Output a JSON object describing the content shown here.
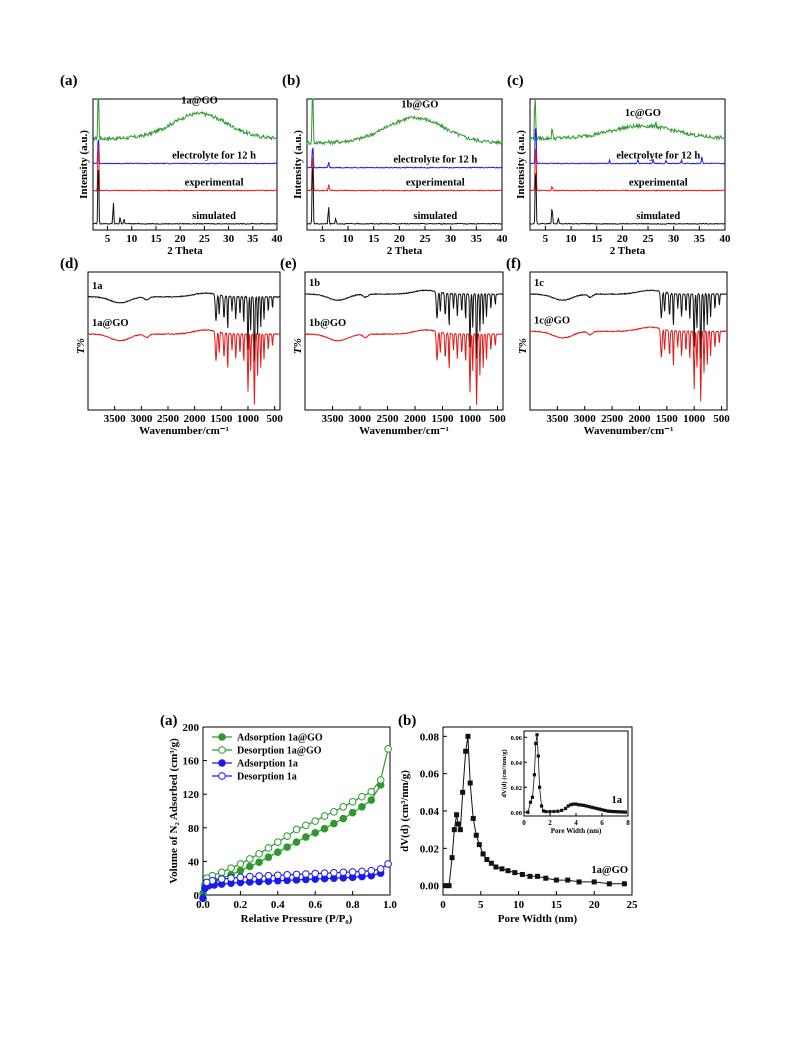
{
  "chart_data": [
    {
      "panel": "(a)",
      "type": "line",
      "xlabel": "2 Theta",
      "ylabel": "Intensity (a.u.)",
      "xlim": [
        2,
        40
      ],
      "xticks": [
        5,
        10,
        15,
        20,
        25,
        30,
        35,
        40
      ],
      "series": [
        {
          "name": "1a@GO",
          "color": "#2e9a2e",
          "offset": 4.4,
          "shape": "hump",
          "hump_center": 24,
          "hump_width": 8,
          "hump_height": 1.2,
          "sharp_peaks": [
            [
              3.1,
              5.0
            ]
          ]
        },
        {
          "name": "electrolyte for 12 h",
          "color": "#1a1aee",
          "offset": 3.2,
          "shape": "flat",
          "sharp_peaks": [
            [
              3.1,
              1.6
            ]
          ]
        },
        {
          "name": "experimental",
          "color": "#e31a1a",
          "offset": 1.9,
          "shape": "flat",
          "sharp_peaks": [
            [
              3.1,
              3.0
            ]
          ]
        },
        {
          "name": "simulated",
          "color": "#111111",
          "offset": 0.3,
          "shape": "flat",
          "sharp_peaks": [
            [
              3.1,
              3.6
            ],
            [
              6.2,
              1.1
            ],
            [
              7.6,
              0.35
            ],
            [
              8.4,
              0.25
            ]
          ]
        }
      ]
    },
    {
      "panel": "(b)",
      "type": "line",
      "xlabel": "2 Theta",
      "ylabel": "Intensity (a.u.)",
      "xlim": [
        2,
        40
      ],
      "xticks": [
        5,
        10,
        15,
        20,
        25,
        30,
        35,
        40
      ],
      "series": [
        {
          "name": "1b@GO",
          "color": "#2e9a2e",
          "offset": 4.2,
          "shape": "hump",
          "hump_center": 23,
          "hump_width": 8,
          "hump_height": 1.2,
          "sharp_peaks": [
            [
              3.1,
              4.6
            ]
          ]
        },
        {
          "name": "electrolyte for 12 h",
          "color": "#1a1aee",
          "offset": 3.0,
          "shape": "flat",
          "sharp_peaks": [
            [
              3.1,
              1.3
            ],
            [
              6.2,
              0.3
            ]
          ]
        },
        {
          "name": "experimental",
          "color": "#e31a1a",
          "offset": 1.9,
          "shape": "flat",
          "sharp_peaks": [
            [
              3.1,
              2.2
            ],
            [
              6.2,
              0.3
            ]
          ]
        },
        {
          "name": "simulated",
          "color": "#111111",
          "offset": 0.3,
          "shape": "flat",
          "sharp_peaks": [
            [
              3.1,
              3.8
            ],
            [
              6.2,
              0.9
            ],
            [
              7.6,
              0.3
            ]
          ]
        }
      ]
    },
    {
      "panel": "(c)",
      "type": "line",
      "xlabel": "2 Theta",
      "ylabel": "Intensity (a.u.)",
      "xlim": [
        2,
        40
      ],
      "xticks": [
        5,
        10,
        15,
        20,
        25,
        30,
        35,
        40
      ],
      "series": [
        {
          "name": "1c@GO",
          "color": "#2e9a2e",
          "offset": 4.4,
          "shape": "hump",
          "hump_center": 24,
          "hump_width": 9,
          "hump_height": 0.6,
          "sharp_peaks": [
            [
              3.0,
              4.2
            ],
            [
              6.3,
              0.6
            ],
            [
              26.5,
              0.3
            ]
          ]
        },
        {
          "name": "electrolyte for 12 h",
          "color": "#1a1aee",
          "offset": 3.2,
          "shape": "flat",
          "sharp_peaks": [
            [
              3.1,
              2.4
            ],
            [
              17.5,
              0.15
            ],
            [
              23,
              0.2
            ],
            [
              26,
              0.2
            ],
            [
              28.5,
              0.15
            ],
            [
              31.5,
              0.15
            ],
            [
              35.5,
              0.35
            ]
          ]
        },
        {
          "name": "experimental",
          "color": "#e31a1a",
          "offset": 1.9,
          "shape": "flat",
          "sharp_peaks": [
            [
              3.1,
              2.8
            ],
            [
              6.3,
              0.25
            ]
          ]
        },
        {
          "name": "simulated",
          "color": "#111111",
          "offset": 0.3,
          "shape": "flat",
          "sharp_peaks": [
            [
              3.1,
              3.4
            ],
            [
              6.3,
              0.9
            ],
            [
              7.5,
              0.3
            ]
          ]
        }
      ]
    },
    {
      "panel": "(d)",
      "type": "line",
      "xlabel": "Wavenumber/cm⁻¹",
      "ylabel": "T%",
      "xlim": [
        4000,
        400
      ],
      "xticks": [
        3500,
        3000,
        2500,
        2000,
        1500,
        1000,
        500
      ],
      "series": [
        {
          "name": "1a",
          "color": "#111111",
          "level": 0.82
        },
        {
          "name": "1a@GO",
          "color": "#e31a1a",
          "level": 0.55
        }
      ]
    },
    {
      "panel": "(e)",
      "type": "line",
      "xlabel": "Wavenumber/cm⁻¹",
      "ylabel": "T%",
      "xlim": [
        4000,
        400
      ],
      "xticks": [
        3500,
        3000,
        2500,
        2000,
        1500,
        1000,
        500
      ],
      "series": [
        {
          "name": "1b",
          "color": "#111111",
          "level": 0.84
        },
        {
          "name": "1b@GO",
          "color": "#e31a1a",
          "level": 0.55
        }
      ]
    },
    {
      "panel": "(f)",
      "type": "line",
      "xlabel": "Wavenumber/cm⁻¹",
      "ylabel": "T%",
      "xlim": [
        4000,
        400
      ],
      "xticks": [
        3500,
        3000,
        2500,
        2000,
        1500,
        1000,
        500
      ],
      "series": [
        {
          "name": "1c",
          "color": "#111111",
          "level": 0.84
        },
        {
          "name": "1c@GO",
          "color": "#e31a1a",
          "level": 0.57
        }
      ]
    },
    {
      "panel": "(a)",
      "type": "line",
      "xlabel": "Relative Pressure (P/P₀)",
      "ylabel": "Volume of N₂ Adsorbed (cm³/g)",
      "xlim": [
        0,
        1.0
      ],
      "ylim": [
        0,
        200
      ],
      "xticks": [
        0.0,
        0.2,
        0.4,
        0.6,
        0.8,
        1.0
      ],
      "yticks": [
        0,
        40,
        80,
        120,
        160,
        200
      ],
      "legend_position": "top-left",
      "series": [
        {
          "name": "Adsorption 1a@GO",
          "color": "#2e9a2e",
          "marker": "filled-circle",
          "x": [
            0.0,
            0.01,
            0.03,
            0.06,
            0.1,
            0.15,
            0.2,
            0.25,
            0.3,
            0.35,
            0.4,
            0.45,
            0.5,
            0.55,
            0.6,
            0.65,
            0.7,
            0.75,
            0.8,
            0.85,
            0.9,
            0.95
          ],
          "y": [
            2,
            12,
            15,
            17,
            20,
            24,
            29,
            34,
            39,
            45,
            51,
            57,
            63,
            69,
            74,
            79,
            85,
            91,
            98,
            105,
            113,
            131
          ]
        },
        {
          "name": "Desorption 1a@GO",
          "color": "#2e9a2e",
          "marker": "open-circle",
          "x": [
            0.99,
            0.95,
            0.9,
            0.85,
            0.8,
            0.75,
            0.7,
            0.65,
            0.6,
            0.55,
            0.5,
            0.45,
            0.4,
            0.35,
            0.3,
            0.25,
            0.2,
            0.15,
            0.1,
            0.05,
            0.02
          ],
          "y": [
            174,
            137,
            123,
            117,
            111,
            105,
            99,
            94,
            88,
            83,
            78,
            70,
            63,
            56,
            49,
            43,
            37,
            32,
            27,
            23,
            20
          ]
        },
        {
          "name": "Adsorption 1a",
          "color": "#1a1aee",
          "marker": "filled-circle",
          "x": [
            0.0,
            0.01,
            0.03,
            0.06,
            0.1,
            0.15,
            0.2,
            0.25,
            0.3,
            0.35,
            0.4,
            0.45,
            0.5,
            0.55,
            0.6,
            0.65,
            0.7,
            0.75,
            0.8,
            0.85,
            0.9,
            0.95
          ],
          "y": [
            -4,
            8,
            11,
            12,
            13,
            14,
            15,
            15.5,
            16,
            16.5,
            17,
            17.5,
            18,
            18.5,
            19,
            19.5,
            20,
            20.5,
            21,
            22,
            23,
            26
          ]
        },
        {
          "name": "Desorption 1a",
          "color": "#1a1aee",
          "marker": "open-circle",
          "x": [
            0.99,
            0.95,
            0.9,
            0.85,
            0.8,
            0.75,
            0.7,
            0.65,
            0.6,
            0.55,
            0.5,
            0.45,
            0.4,
            0.35,
            0.3,
            0.25,
            0.2,
            0.15,
            0.1,
            0.05,
            0.02
          ],
          "y": [
            37,
            31,
            29,
            28,
            27.5,
            27,
            26.5,
            26,
            25.5,
            25,
            24.5,
            24,
            23.5,
            23,
            22.5,
            22,
            21,
            20,
            19,
            17,
            15
          ]
        }
      ]
    },
    {
      "panel": "(b)",
      "type": "line",
      "xlabel": "Pore Width (nm)",
      "ylabel": "dV(d) (cm³/nm/g)",
      "xlim": [
        0,
        25
      ],
      "ylim": [
        -0.005,
        0.085
      ],
      "xticks": [
        0,
        5,
        10,
        15,
        20,
        25
      ],
      "yticks": [
        0.0,
        0.02,
        0.04,
        0.06,
        0.08
      ],
      "series": [
        {
          "name": "1a@GO",
          "color": "#111111",
          "marker": "filled-square",
          "x": [
            0.4,
            0.8,
            1.2,
            1.5,
            1.8,
            2.0,
            2.3,
            2.6,
            3.0,
            3.3,
            3.6,
            4.0,
            4.4,
            4.8,
            5.3,
            5.8,
            6.4,
            7.0,
            7.8,
            8.6,
            9.5,
            10.5,
            11.5,
            12.5,
            13.6,
            15.0,
            16.5,
            18.0,
            20.0,
            22.0,
            24.0
          ],
          "y": [
            0.0,
            0.0,
            0.015,
            0.03,
            0.038,
            0.033,
            0.03,
            0.05,
            0.072,
            0.08,
            0.055,
            0.036,
            0.027,
            0.022,
            0.017,
            0.014,
            0.012,
            0.01,
            0.009,
            0.008,
            0.007,
            0.006,
            0.005,
            0.005,
            0.004,
            0.003,
            0.003,
            0.002,
            0.002,
            0.001,
            0.001
          ]
        }
      ],
      "inset": {
        "type": "line",
        "xlabel": "Pore Width (nm)",
        "ylabel": "dV(d) (cm³/nm/g)",
        "xlim": [
          0,
          8
        ],
        "ylim": [
          -0.003,
          0.065
        ],
        "xticks": [
          0,
          2,
          4,
          6,
          8
        ],
        "yticks": [
          0.0,
          0.02,
          0.04,
          0.06
        ],
        "series": [
          {
            "name": "1a",
            "color": "#111111",
            "marker": "filled-square",
            "x": [
              0.3,
              0.5,
              0.65,
              0.8,
              0.9,
              1.0,
              1.1,
              1.2,
              1.35,
              1.5,
              1.7,
              2.0,
              2.3,
              2.6,
              2.9,
              3.2,
              3.4,
              3.6,
              3.8,
              4.0,
              4.2,
              4.4,
              4.6,
              4.8,
              5.0,
              5.2,
              5.4,
              5.6,
              5.8,
              6.0,
              6.2,
              6.4,
              6.6,
              6.8,
              7.0,
              7.2,
              7.4,
              7.6,
              7.8
            ],
            "y": [
              0.0,
              0.008,
              0.012,
              0.03,
              0.055,
              0.062,
              0.045,
              0.02,
              0.005,
              0.001,
              0.0005,
              0.0005,
              0.0006,
              0.0008,
              0.0015,
              0.003,
              0.005,
              0.006,
              0.0065,
              0.0065,
              0.006,
              0.0058,
              0.0055,
              0.005,
              0.0045,
              0.004,
              0.0035,
              0.003,
              0.0025,
              0.002,
              0.0015,
              0.001,
              0.0008,
              0.0006,
              0.0005,
              0.0004,
              0.0003,
              0.0002,
              0.0001
            ]
          }
        ]
      }
    }
  ],
  "panel_labels": [
    "(a)",
    "(b)",
    "(c)",
    "(d)",
    "(e)",
    "(f)",
    "(a)",
    "(b)"
  ]
}
